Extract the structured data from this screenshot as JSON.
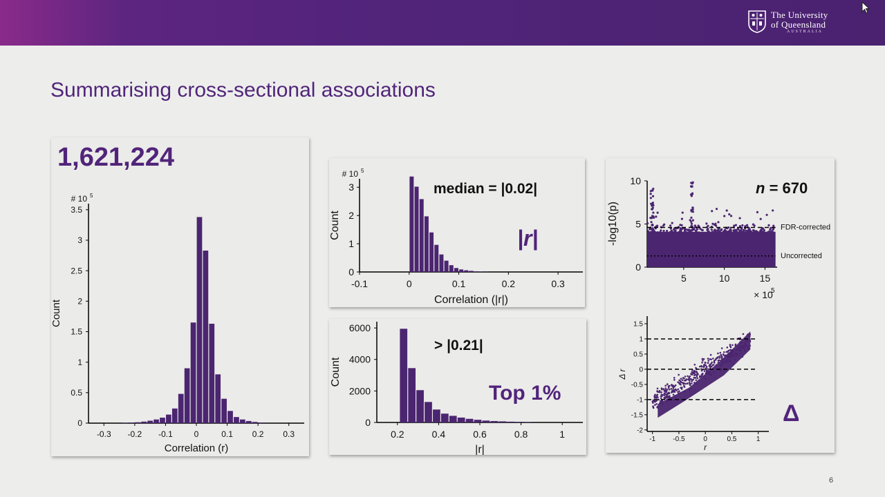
{
  "header": {
    "university_line1": "The University",
    "university_line2": "of Queensland",
    "university_line3": "AUSTRALIA"
  },
  "slide": {
    "title": "Summarising cross-sectional associations",
    "page_number": "6"
  },
  "panels": {
    "main": {
      "big_number": "1,621,224"
    },
    "median": {
      "annotation": "median = |0.02|",
      "symbol": "|r|"
    },
    "top": {
      "annotation": "> |0.21|",
      "caption": "Top 1%"
    },
    "pvals": {
      "n_prefix": "n",
      "n_value": "= 670"
    },
    "delta": {
      "symbol": "Δ"
    }
  },
  "colors": {
    "brand_purple": "#51247a",
    "bar_purple": "#4b2570"
  },
  "chart_data": [
    {
      "id": "hist-r",
      "type": "bar",
      "xlabel": "Correlation (r)",
      "ylabel": "Count",
      "scale_label": "# 10",
      "scale_exp": "5",
      "xlim": [
        -0.35,
        0.35
      ],
      "ylim": [
        0,
        3.6
      ],
      "xticks": [
        -0.3,
        -0.2,
        -0.1,
        0,
        0.1,
        0.2,
        0.3
      ],
      "xtick_labels": [
        "-0.3",
        "-0.2",
        "-0.1",
        "0",
        "0.1",
        "0.2",
        "0.3"
      ],
      "yticks": [
        0,
        0.5,
        1,
        1.5,
        2,
        2.5,
        3,
        3.5
      ],
      "ytick_labels": [
        "0",
        "0.5",
        "1",
        "1.5",
        "2",
        "2.5",
        "3",
        "3.5"
      ],
      "bin_width": 0.02,
      "bins_start": [
        -0.24,
        -0.22,
        -0.2,
        -0.18,
        -0.16,
        -0.14,
        -0.12,
        -0.1,
        -0.08,
        -0.06,
        -0.04,
        -0.02,
        0,
        0.02,
        0.04,
        0.06,
        0.08,
        0.1,
        0.12,
        0.14,
        0.16,
        0.18,
        0.2
      ],
      "values": [
        0.005,
        0.01,
        0.015,
        0.025,
        0.04,
        0.06,
        0.09,
        0.14,
        0.24,
        0.48,
        0.9,
        1.65,
        3.38,
        2.83,
        1.63,
        0.8,
        0.4,
        0.2,
        0.1,
        0.06,
        0.035,
        0.02,
        0.01
      ]
    },
    {
      "id": "hist-abs-r",
      "type": "bar",
      "xlabel": "Correlation (|r|)",
      "ylabel": "Count",
      "scale_label": "# 10",
      "scale_exp": "5",
      "xlim": [
        -0.1,
        0.35
      ],
      "ylim": [
        0,
        3.3
      ],
      "xticks": [
        -0.1,
        0,
        0.1,
        0.2,
        0.3
      ],
      "xtick_labels": [
        "-0.1",
        "0",
        "0.1",
        "0.2",
        "0.3"
      ],
      "yticks": [
        0,
        1,
        2,
        3
      ],
      "ytick_labels": [
        "0",
        "1",
        "2",
        "3"
      ],
      "bin_width": 0.01,
      "bins_start": [
        0,
        0.01,
        0.02,
        0.03,
        0.04,
        0.05,
        0.06,
        0.07,
        0.08,
        0.09,
        0.1,
        0.11,
        0.12,
        0.13,
        0.14,
        0.15
      ],
      "values": [
        3.38,
        3.02,
        2.58,
        1.97,
        1.4,
        0.96,
        0.62,
        0.4,
        0.24,
        0.14,
        0.09,
        0.06,
        0.04,
        0.02,
        0.01,
        0.005
      ]
    },
    {
      "id": "hist-top",
      "type": "bar",
      "xlabel": "|r|",
      "ylabel": "Count",
      "xlim": [
        0.1,
        1.1
      ],
      "ylim": [
        0,
        6400
      ],
      "xticks": [
        0.2,
        0.4,
        0.6,
        0.8,
        1
      ],
      "xtick_labels": [
        "0.2",
        "0.4",
        "0.6",
        "0.8",
        "1"
      ],
      "yticks": [
        0,
        2000,
        4000,
        6000
      ],
      "ytick_labels": [
        "0",
        "2000",
        "4000",
        "6000"
      ],
      "bin_width": 0.04,
      "bins_start": [
        0.21,
        0.25,
        0.29,
        0.33,
        0.37,
        0.41,
        0.45,
        0.49,
        0.53,
        0.57,
        0.61,
        0.65,
        0.69,
        0.73,
        0.77,
        0.81
      ],
      "values": [
        5950,
        3450,
        2050,
        1300,
        820,
        560,
        420,
        310,
        230,
        170,
        120,
        90,
        70,
        50,
        35,
        25
      ]
    },
    {
      "id": "manhattan",
      "type": "scatter",
      "ylabel": "-log10(p)",
      "x_multiplier_label": "× 10",
      "x_multiplier_exp": "5",
      "xlim": [
        0.5,
        16.5
      ],
      "ylim": [
        0,
        10
      ],
      "xticks": [
        5,
        10,
        15
      ],
      "xtick_labels": [
        "5",
        "10",
        "15"
      ],
      "yticks": [
        0,
        5,
        10
      ],
      "ytick_labels": [
        "0",
        "5",
        "10"
      ],
      "thresholds": [
        {
          "label": "FDR-corrected",
          "y": 4.6,
          "style": "dashed"
        },
        {
          "label": "Uncorrected",
          "y": 1.3,
          "style": "dotted"
        }
      ]
    },
    {
      "id": "delta-scatter",
      "type": "scatter",
      "xlabel": "r",
      "ylabel": "Δ r",
      "xlim": [
        -1.1,
        1.2
      ],
      "ylim": [
        -2.05,
        1.75
      ],
      "xticks": [
        -1,
        -0.5,
        0,
        0.5,
        1
      ],
      "xtick_labels": [
        "-1",
        "-0.5",
        "0",
        "0.5",
        "1"
      ],
      "yticks": [
        -2,
        -1.5,
        -1,
        -0.5,
        0,
        0.5,
        1,
        1.5
      ],
      "ytick_labels": [
        "-2",
        "-1.5",
        "-1",
        "-0.5",
        "0",
        "0.5",
        "1",
        "1.5"
      ],
      "reference_lines": [
        1,
        0,
        -1
      ]
    }
  ]
}
